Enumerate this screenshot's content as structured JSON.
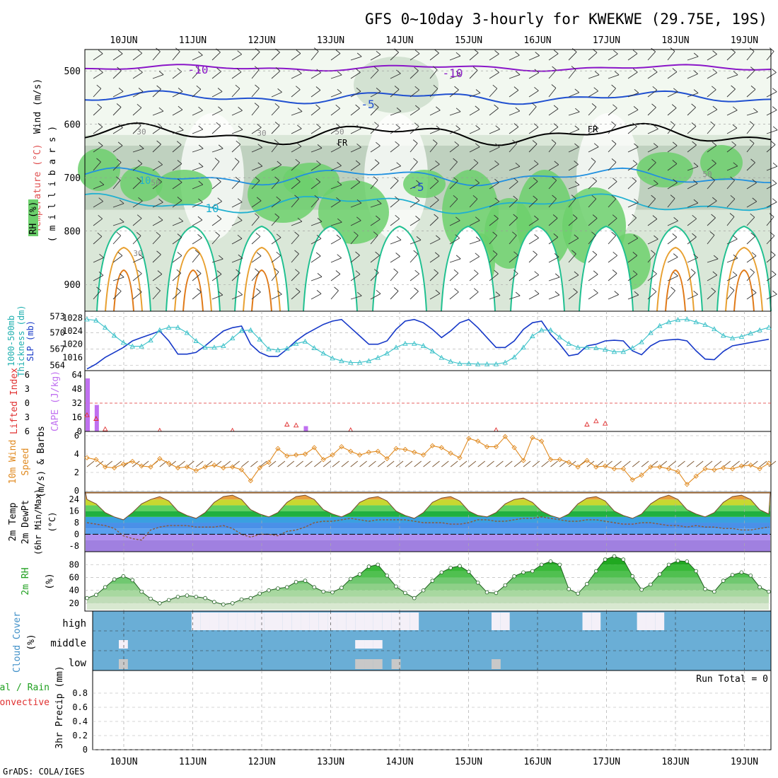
{
  "title": "GFS 0~10day 3-hourly for KWEKWE (29.75E, 19S)",
  "footer": "GrADS: COLA/IGES",
  "days": [
    "10JUN",
    "11JUN",
    "12JUN",
    "13JUN",
    "14JUN",
    "15JUN",
    "16JUN",
    "17JUN",
    "18JUN",
    "19JUN"
  ],
  "colors": {
    "rh_light": "#e4f2e0",
    "rh_mid": "#c6d8c4",
    "rh_dark": "#a9bfab",
    "rh_green": "#6cd06c",
    "rh_bright": "#10f010",
    "temp_m10": "#8a16c8",
    "temp_m5": "#2050d0",
    "temp_5": "#2090e0",
    "temp_10": "#20b0d0",
    "temp_15": "#20c090",
    "temp_warm1": "#e8a030",
    "temp_warm2": "#e07a18",
    "frz": "#000000",
    "slp": "#1638c8",
    "thick": "#38c0c8",
    "cape": "#c070f0",
    "li": "#e03030",
    "wind": "#e08a20",
    "barb": "#7a5530",
    "cloud_bg": "#6aaed6",
    "cloud_fill": "#f4f0f8",
    "cf_strong": "#c8c8c8"
  },
  "ylabels": {
    "wind": "Wind (m/s)",
    "temperature": "Temperature (°C)",
    "rh_pct": "RH (%)",
    "millibars": "( m i l l i b a r s )",
    "thickness": "1000-500mb",
    "thickness2": "Thickness (dm)",
    "slp": "SLP (mb)",
    "li": "Lifted Index",
    "cape": "CAPE (J/kg)",
    "wind10": "10m Wind",
    "speed": "Speed",
    "barbs": "(m/s) & Barbs",
    "temp2m": "2m Temp",
    "dew2m": "2m DewPt",
    "minmax": "(6hr Min/Max)",
    "degc": "(°C)",
    "rh2m": "2m RH",
    "rh2m_unit": "(%)",
    "cloud": "Cloud Cover",
    "cloud_unit": "(%)",
    "precip_total": "tal / Rain",
    "precip_conv": "Convective",
    "precip": "3hr Precip (mm)"
  },
  "cross_section": {
    "type": "heatmap",
    "pressure_ticks": [
      "500",
      "600",
      "700",
      "800",
      "900"
    ],
    "contour_labels": [
      "-10",
      "-10",
      "-5",
      "-5",
      "10",
      "FR",
      "FR",
      "30",
      "30",
      "50",
      "50",
      "50",
      "10",
      "30"
    ]
  },
  "chart_data": [
    {
      "type": "line",
      "name": "slp_thickness",
      "y_ticks_left": [
        "573",
        "570",
        "567",
        "564"
      ],
      "y_ticks_right": [
        "1028",
        "1024",
        "1020",
        "1016"
      ],
      "ylim_thickness": [
        563,
        574
      ],
      "ylim_slp": [
        1012,
        1030
      ],
      "series": [
        {
          "name": "SLP (mb)",
          "values": [
            1012.5,
            1014,
            1016,
            1017.5,
            1019,
            1021,
            1022,
            1023,
            1024,
            1021,
            1017,
            1017,
            1017.5,
            1019.5,
            1021.8,
            1024,
            1025,
            1025.5,
            1020,
            1017.5,
            1016.3,
            1016.3,
            1018.5,
            1021,
            1023,
            1024.5,
            1026,
            1027,
            1027.5,
            1025,
            1022.5,
            1020,
            1020,
            1021,
            1024.5,
            1027,
            1027.5,
            1026.5,
            1024.5,
            1022,
            1024,
            1026.5,
            1027.5,
            1025,
            1022,
            1019,
            1019,
            1021,
            1024.5,
            1026.5,
            1027,
            1023,
            1020,
            1016.5,
            1017,
            1019.5,
            1020,
            1021,
            1021.2,
            1021,
            1018,
            1016.8,
            1019.5,
            1021,
            1021.3,
            1021.5,
            1021,
            1018,
            1015.5,
            1015.3,
            1017.8,
            1019.5,
            1020,
            1020.5,
            1021,
            1021.5
          ]
        },
        {
          "name": "Thickness (dm)",
          "values": [
            572.5,
            572.3,
            571,
            569.5,
            568.2,
            567.5,
            567.5,
            568.6,
            570.5,
            571,
            571,
            570,
            568.5,
            567.3,
            567.3,
            567.6,
            569,
            570.4,
            570.5,
            568.8,
            567,
            566.8,
            567.1,
            568,
            568.4,
            567.2,
            566.2,
            565.3,
            564.8,
            564.5,
            564.5,
            564.8,
            565.4,
            566.2,
            567.3,
            568,
            568,
            567.6,
            566.6,
            565.4,
            564.7,
            564.3,
            564.3,
            564.2,
            564.2,
            564.2,
            564.5,
            565.5,
            567.3,
            569.4,
            570.5,
            570.5,
            569.2,
            568,
            567.3,
            567.3,
            567.2,
            566.9,
            566.5,
            566.5,
            567.2,
            568.3,
            570,
            571.3,
            572,
            572.4,
            572.5,
            572,
            571.5,
            570.7,
            569.5,
            569,
            569.3,
            569.9,
            570.5,
            571
          ]
        }
      ]
    },
    {
      "type": "bar",
      "name": "cape_li",
      "y_ticks_left": [
        "6",
        "3",
        "0",
        "3",
        "6"
      ],
      "y_ticks_right": [
        "64",
        "48",
        "32",
        "16",
        "0"
      ],
      "ylim_cape": [
        0,
        64
      ],
      "ylim_li": [
        -6,
        6
      ],
      "cape_bars": [
        {
          "x_index": 0,
          "value": 60
        },
        {
          "x_index": 1,
          "value": 30
        },
        {
          "x_index": 24,
          "value": 6
        }
      ],
      "li_points": [
        {
          "x_index": 0,
          "value": -2.5
        },
        {
          "x_index": 1,
          "value": -3.3
        },
        {
          "x_index": 2,
          "value": -5.5
        },
        {
          "x_index": 8,
          "value": -5.8
        },
        {
          "x_index": 16,
          "value": -5.8
        },
        {
          "x_index": 22,
          "value": -4.5
        },
        {
          "x_index": 23,
          "value": -4.7
        },
        {
          "x_index": 29,
          "value": -5.7
        },
        {
          "x_index": 45,
          "value": -5.7
        },
        {
          "x_index": 55,
          "value": -4.5
        },
        {
          "x_index": 56,
          "value": -3.8
        },
        {
          "x_index": 57,
          "value": -4.3
        }
      ]
    },
    {
      "type": "line",
      "name": "wind10m",
      "y_ticks": [
        "6",
        "4",
        "2",
        "0"
      ],
      "ylim": [
        0,
        6
      ],
      "series": [
        {
          "name": "Speed (m/s)",
          "values": [
            3.6,
            3.4,
            2.6,
            2.5,
            2.9,
            3.2,
            2.7,
            2.6,
            3.5,
            3,
            2.5,
            2.6,
            2.2,
            2.6,
            2.8,
            2.5,
            2.6,
            2.3,
            1.1,
            2.5,
            3.1,
            4.6,
            3.8,
            3.9,
            4,
            4.7,
            3.4,
            3.9,
            4.8,
            4.3,
            3.9,
            4.2,
            4.3,
            3.5,
            4.6,
            4.5,
            4.2,
            3.9,
            4.9,
            4.7,
            4.1,
            3.6,
            5.7,
            5.4,
            4.8,
            4.8,
            5.9,
            4.7,
            3.3,
            5.8,
            5.4,
            3.4,
            3.4,
            3.1,
            2.6,
            3.3,
            2.6,
            2.7,
            2.4,
            2.4,
            1.2,
            1.7,
            2.6,
            2.6,
            2.4,
            2.1,
            0.7,
            1.6,
            2.4,
            2.3,
            2.5,
            2.4,
            2.7,
            2.8,
            2.4,
            3
          ]
        }
      ]
    },
    {
      "type": "line",
      "name": "temp2m",
      "y_ticks": [
        "24",
        "16",
        "8",
        "0",
        "-8"
      ],
      "ylim": [
        -12,
        29
      ],
      "series": [
        {
          "name": "2m Temp (°C)",
          "values": [
            24,
            21,
            15,
            12,
            10,
            15,
            21,
            24,
            26,
            23,
            16,
            13,
            11,
            15,
            22,
            26,
            27,
            24,
            17,
            14,
            12,
            15,
            22,
            26,
            27,
            24,
            17,
            14,
            12,
            15,
            22,
            25,
            26,
            23,
            16,
            13,
            11,
            15,
            22,
            25,
            26,
            23,
            16,
            13,
            12,
            15,
            21,
            24,
            25,
            22,
            16,
            13,
            11,
            14,
            21,
            25,
            26,
            23,
            16,
            13,
            11,
            14,
            21,
            25,
            27,
            24,
            17,
            14,
            12,
            15,
            22,
            26,
            27,
            24,
            17,
            14
          ]
        },
        {
          "name": "2m DewPt (°C)",
          "values": [
            8,
            7,
            6,
            4,
            -1,
            -3,
            -4,
            3,
            5,
            6,
            6,
            6,
            5,
            5,
            5,
            6,
            4,
            0,
            -2,
            0,
            0,
            -1,
            2,
            3,
            5,
            8,
            9,
            9,
            10,
            11,
            10,
            9,
            10,
            10,
            10,
            10,
            9,
            8,
            8,
            8,
            7,
            7,
            8,
            10,
            10,
            9,
            9,
            10,
            11,
            11,
            12,
            11,
            10,
            9,
            9,
            10,
            10,
            9,
            8,
            7,
            7,
            8,
            8,
            7,
            6,
            6,
            5,
            6,
            5,
            5,
            4,
            4,
            3,
            3,
            4,
            5
          ]
        }
      ]
    },
    {
      "type": "area",
      "name": "rh2m",
      "y_ticks": [
        "80",
        "60",
        "40",
        "20"
      ],
      "ylim": [
        10,
        98
      ],
      "series": [
        {
          "name": "2m RH (%)",
          "values": [
            28,
            33,
            45,
            57,
            62,
            56,
            38,
            27,
            20,
            25,
            30,
            32,
            30,
            28,
            22,
            18,
            20,
            26,
            28,
            35,
            40,
            43,
            45,
            53,
            55,
            45,
            38,
            37,
            44,
            58,
            65,
            77,
            80,
            63,
            46,
            36,
            28,
            40,
            55,
            68,
            75,
            78,
            69,
            52,
            37,
            36,
            48,
            62,
            68,
            70,
            80,
            85,
            80,
            42,
            35,
            50,
            70,
            88,
            93,
            88,
            62,
            41,
            49,
            65,
            80,
            86,
            85,
            70,
            42,
            38,
            55,
            64,
            68,
            63,
            45,
            38
          ]
        }
      ]
    },
    {
      "type": "bar",
      "name": "cloud_cover",
      "y_categories": [
        "high",
        "middle",
        "low"
      ],
      "high_columns": [
        12,
        13,
        14,
        15,
        16,
        17,
        18,
        19,
        20,
        21,
        22,
        23,
        24,
        25,
        26,
        27,
        28,
        29,
        30,
        31,
        32,
        33,
        34,
        35,
        36,
        45,
        46,
        55,
        56,
        61,
        62,
        63
      ],
      "middle_columns": [
        4,
        30,
        31,
        32
      ],
      "low_columns": [
        4,
        30,
        31,
        32,
        34,
        45
      ]
    },
    {
      "type": "line",
      "name": "precip3hr",
      "y_ticks": [
        "0.8",
        "0.6",
        "0.4",
        "0.2",
        "0"
      ],
      "ylim": [
        0,
        1
      ],
      "annotation": "Run Total = 0",
      "series": [
        {
          "name": "3hr Precip (mm)",
          "values": []
        }
      ]
    }
  ]
}
